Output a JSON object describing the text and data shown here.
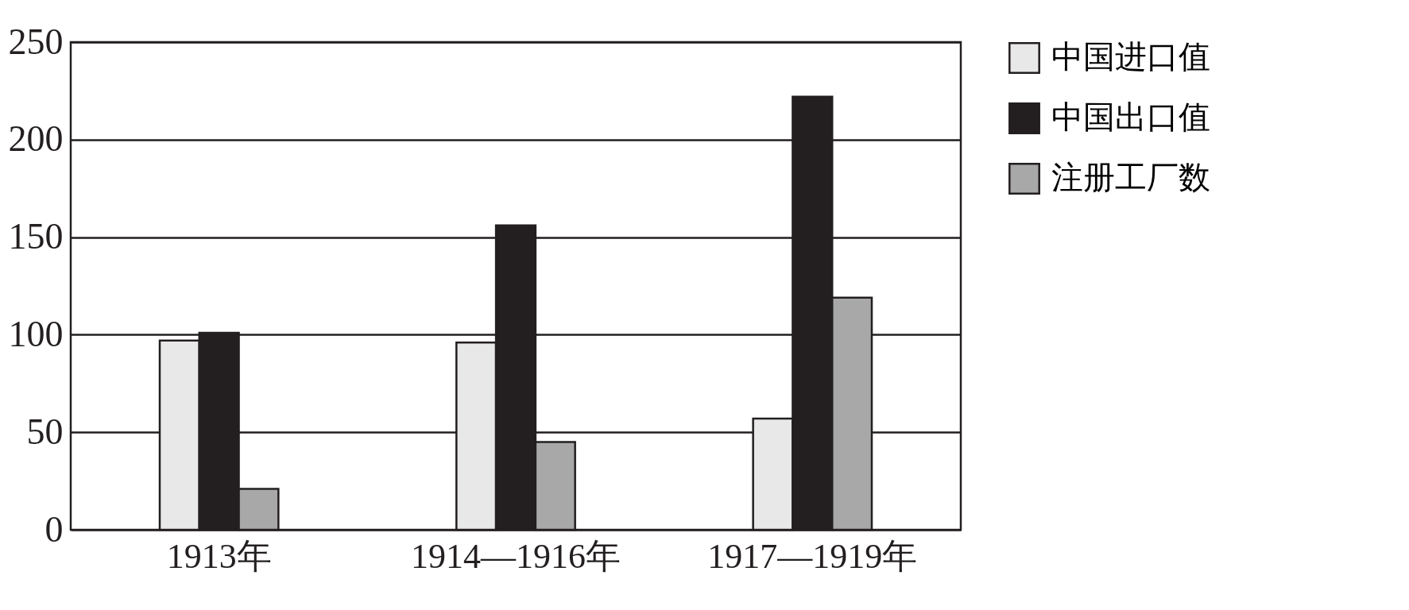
{
  "chart_data": {
    "type": "bar",
    "categories": [
      "1913年",
      "1914—1916年",
      "1917—1919年"
    ],
    "series": [
      {
        "name": "中国进口值",
        "color": "#e8e8e8",
        "values": [
          97,
          96,
          57
        ]
      },
      {
        "name": "中国出口值",
        "color": "#231f20",
        "values": [
          101,
          156,
          222
        ]
      },
      {
        "name": "注册工厂数",
        "color": "#a8a8a8",
        "values": [
          21,
          45,
          119
        ]
      }
    ],
    "ylim": [
      0,
      250
    ],
    "yticks": [
      0,
      50,
      100,
      150,
      200,
      250
    ],
    "grid": "y",
    "legend": "right"
  }
}
